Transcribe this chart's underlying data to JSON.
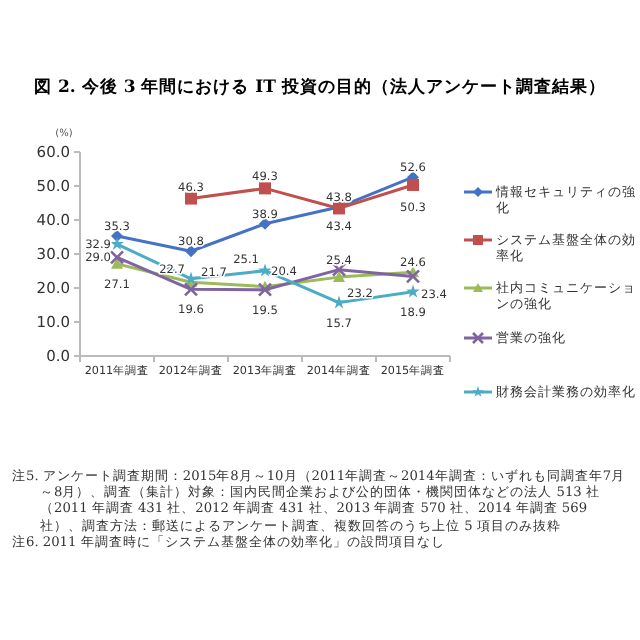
{
  "chart_data": {
    "type": "line",
    "title": "図 2. 今後 3 年間における IT 投資の目的（法人アンケート調査結果）",
    "ylabel": "(%)",
    "categories": [
      "2011年調査",
      "2012年調査",
      "2013年調査",
      "2014年調査",
      "2015年調査"
    ],
    "series": [
      {
        "name": "情報セキュリティの強化",
        "color": "#4472c4",
        "marker": "diamond",
        "values": [
          35.3,
          30.8,
          38.9,
          43.8,
          52.6
        ],
        "value_labels": [
          "35.3",
          "30.8",
          "38.9",
          "43.8",
          "52.6"
        ]
      },
      {
        "name": "システム基盤全体の効率化",
        "color": "#c0504d",
        "marker": "square",
        "values": [
          null,
          46.3,
          49.3,
          43.4,
          50.3
        ],
        "value_labels": [
          null,
          "46.3",
          "49.3",
          "43.4",
          "50.3"
        ]
      },
      {
        "name": "社内コミュニケーションの強化",
        "color": "#9bbb59",
        "marker": "triangle",
        "values": [
          27.1,
          21.7,
          20.4,
          23.2,
          24.6
        ],
        "value_labels": [
          "27.1",
          "21.7",
          "20.4",
          "23.2",
          "24.6"
        ]
      },
      {
        "name": "営業の強化",
        "color": "#8064a2",
        "marker": "cross",
        "values": [
          29.0,
          19.6,
          19.5,
          25.4,
          23.4
        ],
        "value_labels": [
          "29.0",
          "19.6",
          "19.5",
          "25.4",
          "23.4"
        ]
      },
      {
        "name": "財務会計業務の効率化",
        "color": "#4bacc6",
        "marker": "star",
        "values": [
          32.9,
          22.7,
          25.1,
          15.7,
          18.9
        ],
        "value_labels": [
          "32.9",
          "22.7",
          "25.1",
          "15.7",
          "18.9"
        ]
      }
    ],
    "ylim": [
      0,
      60
    ],
    "yticks": [
      {
        "value": 0,
        "label": "0.0"
      },
      {
        "value": 10,
        "label": "10.0"
      },
      {
        "value": 20,
        "label": "20.0"
      },
      {
        "value": 30,
        "label": "30.0"
      },
      {
        "value": 40,
        "label": "40.0"
      },
      {
        "value": 50,
        "label": "50.0"
      },
      {
        "value": 60,
        "label": "60.0"
      }
    ],
    "grid": false,
    "legend": "right",
    "line_style": "solid",
    "annotations": [
      "注5. アンケート調査期間：2015年8月～10月（2011年調査～2014年調査：いずれも同調査年7月～8月）、調査（集計）対象：国内民間企業および公的団体・機関団体などの法人 513 社（2011 年調査 431 社、2012 年調査 431 社、2013 年調査 570 社、2014 年調査 569 社）、調査方法：郵送によるアンケート調査、複数回答のうち上位 5 項目のみ抜粋",
      "注6. 2011 年調査時に「システム基盤全体の効率化」の設問項目なし"
    ]
  }
}
